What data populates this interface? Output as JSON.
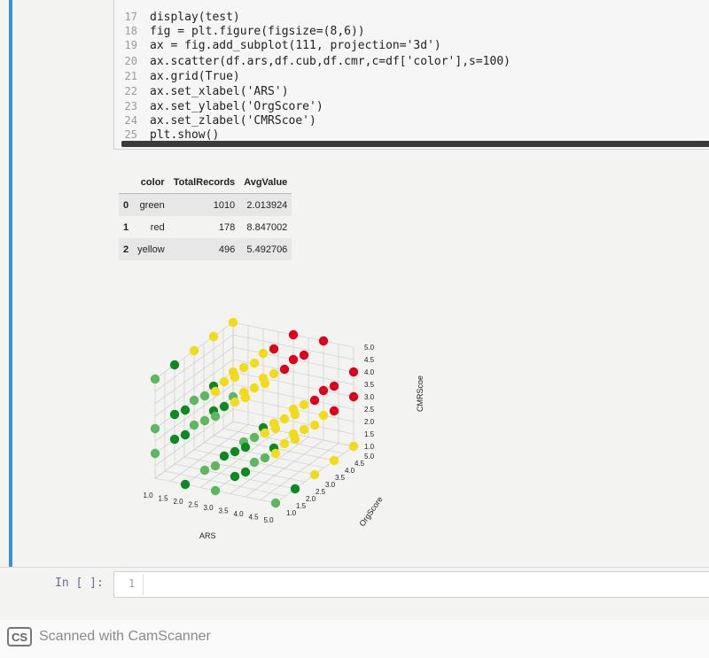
{
  "code": {
    "lines": [
      {
        "num": "17",
        "text": "display(test)"
      },
      {
        "num": "18",
        "text": "fig = plt.figure(figsize=(8,6))"
      },
      {
        "num": "19",
        "text": "ax = fig.add_subplot(111, projection='3d')"
      },
      {
        "num": "20",
        "text": "ax.scatter(df.ars,df.cub,df.cmr,c=df['color'],s=100)"
      },
      {
        "num": "21",
        "text": "ax.grid(True)"
      },
      {
        "num": "22",
        "text": "ax.set_xlabel('ARS')"
      },
      {
        "num": "23",
        "text": "ax.set_ylabel('OrgScore')"
      },
      {
        "num": "24",
        "text": "ax.set_zlabel('CMRScoe')"
      },
      {
        "num": "25",
        "text": "plt.show()"
      }
    ]
  },
  "table": {
    "headers": [
      "",
      "color",
      "TotalRecords",
      "AvgValue"
    ],
    "rows": [
      {
        "index": "0",
        "color": "green",
        "total": "1010",
        "avg": "2.013924"
      },
      {
        "index": "1",
        "color": "red",
        "total": "178",
        "avg": "8.847002"
      },
      {
        "index": "2",
        "color": "yellow",
        "total": "496",
        "avg": "5.492706"
      }
    ]
  },
  "plot": {
    "xlabel": "ARS",
    "ylabel": "OrgScore",
    "zlabel": "CMRScoe",
    "x_ticks": [
      "1.0",
      "1.5",
      "2.0",
      "2.5",
      "3.0",
      "3.5",
      "4.0",
      "4.5",
      "5.0"
    ],
    "y_ticks": [
      "1.0",
      "1.5",
      "2.0",
      "2.5",
      "3.0",
      "3.5",
      "4.0",
      "4.5",
      "5.0"
    ],
    "z_ticks": [
      "1.0",
      "1.5",
      "2.0",
      "2.5",
      "3.0",
      "3.5",
      "4.0",
      "4.5",
      "5.0"
    ],
    "colors": {
      "green": "#0a8a1f",
      "lightgreen": "#5cb85c",
      "red": "#e0001a",
      "yellow": "#f2dc1a"
    }
  },
  "input_cell": {
    "prompt": "In [ ]:",
    "line_number": "1"
  },
  "footer": {
    "logo": "CS",
    "text": "Scanned with CamScanner"
  }
}
